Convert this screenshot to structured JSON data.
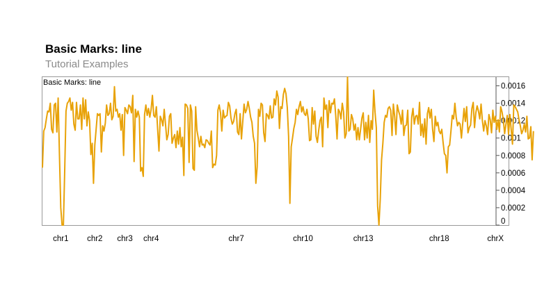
{
  "title": "Basic Marks: line",
  "subtitle": "Tutorial Examples",
  "chart_data": {
    "type": "line",
    "track_label": "Basic Marks: line",
    "color": "#e8a208",
    "ylim": [
      0,
      0.0017
    ],
    "y_ticks": [
      {
        "value": 0,
        "label": "0"
      },
      {
        "value": 0.0002,
        "label": "0.0002"
      },
      {
        "value": 0.0004,
        "label": "0.0004"
      },
      {
        "value": 0.0006,
        "label": "0.0006"
      },
      {
        "value": 0.0008,
        "label": "0.0008"
      },
      {
        "value": 0.001,
        "label": "0.001"
      },
      {
        "value": 0.0012,
        "label": "0.0012"
      },
      {
        "value": 0.0014,
        "label": "0.0014"
      },
      {
        "value": 0.0016,
        "label": "0.0016"
      }
    ],
    "x_ticks": [
      {
        "value": 14,
        "label": "chr1"
      },
      {
        "value": 40,
        "label": "chr2"
      },
      {
        "value": 63,
        "label": "chr3"
      },
      {
        "value": 83,
        "label": "chr4"
      },
      {
        "value": 148,
        "label": "chr7"
      },
      {
        "value": 199,
        "label": "chr10"
      },
      {
        "value": 245,
        "label": "chr13"
      },
      {
        "value": 303,
        "label": "chr18"
      },
      {
        "value": 346,
        "label": "chrX"
      }
    ],
    "xlim": [
      0,
      356
    ],
    "grid": false,
    "legend": "none",
    "y_axis_side": "right",
    "values": [
      0.00066,
      0.00108,
      0.00112,
      0.00122,
      0.00131,
      0.0013,
      0.0014,
      0.0011,
      0.00106,
      0.00138,
      0.0014,
      0.00107,
      0.00146,
      0.0008,
      0.0002,
      0.0,
      0.0,
      0.00062,
      0.00131,
      0.0014,
      0.00142,
      0.00146,
      0.00132,
      0.00141,
      0.00116,
      0.00109,
      0.00141,
      0.00122,
      0.00122,
      0.00138,
      0.0011,
      0.00146,
      0.00122,
      0.00144,
      0.00114,
      0.0013,
      0.0012,
      0.00081,
      0.00094,
      0.00048,
      0.00092,
      0.0011,
      0.00128,
      0.00126,
      0.00128,
      0.00084,
      0.00114,
      0.00108,
      0.00117,
      0.00138,
      0.00126,
      0.00128,
      0.0014,
      0.00121,
      0.00125,
      0.00159,
      0.00131,
      0.00133,
      0.00124,
      0.00128,
      0.00109,
      0.00127,
      0.0008,
      0.00135,
      0.00132,
      0.00128,
      0.00138,
      0.00136,
      0.00129,
      0.00149,
      0.00073,
      0.00133,
      0.00124,
      0.00131,
      0.00124,
      0.00062,
      0.00066,
      0.00056,
      0.00127,
      0.00138,
      0.00126,
      0.00134,
      0.00124,
      0.00133,
      0.00149,
      0.00126,
      0.00124,
      0.00136,
      0.0011,
      0.00085,
      0.00125,
      0.00121,
      0.00114,
      0.00133,
      0.00116,
      0.00098,
      0.00104,
      0.00125,
      0.00128,
      0.00094,
      0.001,
      0.00104,
      0.00089,
      0.00108,
      0.00093,
      0.00112,
      0.0009,
      0.00101,
      0.00057,
      0.00139,
      0.00138,
      0.00134,
      0.00072,
      0.00138,
      0.00131,
      0.00065,
      0.00063,
      0.00136,
      0.00109,
      0.001,
      0.0009,
      0.00102,
      0.00092,
      0.00093,
      0.00089,
      0.00098,
      0.00097,
      0.00094,
      0.00092,
      0.00108,
      0.00066,
      0.0007,
      0.00069,
      0.0008,
      0.00132,
      0.00138,
      0.00129,
      0.00108,
      0.00132,
      0.00123,
      0.00125,
      0.00126,
      0.00141,
      0.00137,
      0.00123,
      0.00116,
      0.00119,
      0.00128,
      0.00133,
      0.00107,
      0.00104,
      0.00128,
      0.00099,
      0.00119,
      0.00139,
      0.00129,
      0.00133,
      0.00142,
      0.00134,
      0.00124,
      0.00118,
      0.00102,
      0.00094,
      0.00048,
      0.00067,
      0.00133,
      0.00125,
      0.0014,
      0.00138,
      0.00106,
      0.00096,
      0.00128,
      0.00126,
      0.00122,
      0.00137,
      0.00123,
      0.00124,
      0.00145,
      0.00138,
      0.00154,
      0.00147,
      0.00111,
      0.00136,
      0.00134,
      0.0015,
      0.00157,
      0.00151,
      0.00135,
      0.00102,
      0.00025,
      0.0009,
      0.001,
      0.00111,
      0.00118,
      0.00133,
      0.00127,
      0.00136,
      0.00142,
      0.0013,
      0.00136,
      0.00128,
      0.00126,
      0.00133,
      0.00122,
      0.00097,
      0.00098,
      0.00135,
      0.00116,
      0.00131,
      0.00102,
      0.00095,
      0.00109,
      0.0012,
      0.00124,
      0.0009,
      0.00146,
      0.00133,
      0.00138,
      0.00112,
      0.00143,
      0.00129,
      0.0014,
      0.00139,
      0.00145,
      0.00126,
      0.00099,
      0.00133,
      0.0013,
      0.00122,
      0.0014,
      0.0013,
      0.001,
      0.00105,
      0.00173,
      0.00108,
      0.0011,
      0.00127,
      0.00122,
      0.00109,
      0.00116,
      0.00098,
      0.00112,
      0.00098,
      0.0011,
      0.00123,
      0.00129,
      0.00098,
      0.00118,
      0.001,
      0.00126,
      0.00095,
      0.0012,
      0.0011,
      0.00155,
      0.0013,
      0.00112,
      0.00022,
      0.0,
      0.0003,
      0.00075,
      0.00094,
      0.00118,
      0.00126,
      0.00124,
      0.00134,
      0.00136,
      0.00132,
      0.00103,
      0.00139,
      0.00125,
      0.00104,
      0.00138,
      0.00131,
      0.00126,
      0.00116,
      0.00132,
      0.00103,
      0.00114,
      0.00115,
      0.00132,
      0.00082,
      0.00084,
      0.00124,
      0.00134,
      0.00116,
      0.00125,
      0.00126,
      0.00116,
      0.00141,
      0.00103,
      0.00116,
      0.00101,
      0.00122,
      0.00093,
      0.00128,
      0.00135,
      0.00123,
      0.00133,
      0.0011,
      0.00096,
      0.00125,
      0.00114,
      0.00118,
      0.00108,
      0.00105,
      0.0011,
      0.00095,
      0.00082,
      0.0008,
      0.0006,
      0.0009,
      0.00092,
      0.00108,
      0.00126,
      0.00122,
      0.0014,
      0.00124,
      0.00114,
      0.00118,
      0.00116,
      0.001,
      0.00117,
      0.00134,
      0.00119,
      0.00136,
      0.00106,
      0.00112,
      0.00115,
      0.00134,
      0.00141,
      0.00112,
      0.00129,
      0.00137,
      0.00131,
      0.00122,
      0.00139,
      0.0012,
      0.00108,
      0.0012,
      0.00114,
      0.00104,
      0.00127,
      0.00121,
      0.00106,
      0.00132,
      0.00118,
      0.00125,
      0.0011,
      0.00121,
      0.00107,
      0.00136,
      0.0013,
      0.00121,
      0.00105,
      0.00116,
      0.00126,
      0.00104,
      0.00127,
      0.0011,
      0.00093,
      0.00138,
      0.00136,
      0.00133,
      0.0013,
      0.00121,
      0.00114,
      0.00105,
      0.00109,
      0.00116,
      0.00107,
      0.00125,
      0.00099,
      0.001,
      0.00113,
      0.00075,
      0.00108
    ]
  }
}
